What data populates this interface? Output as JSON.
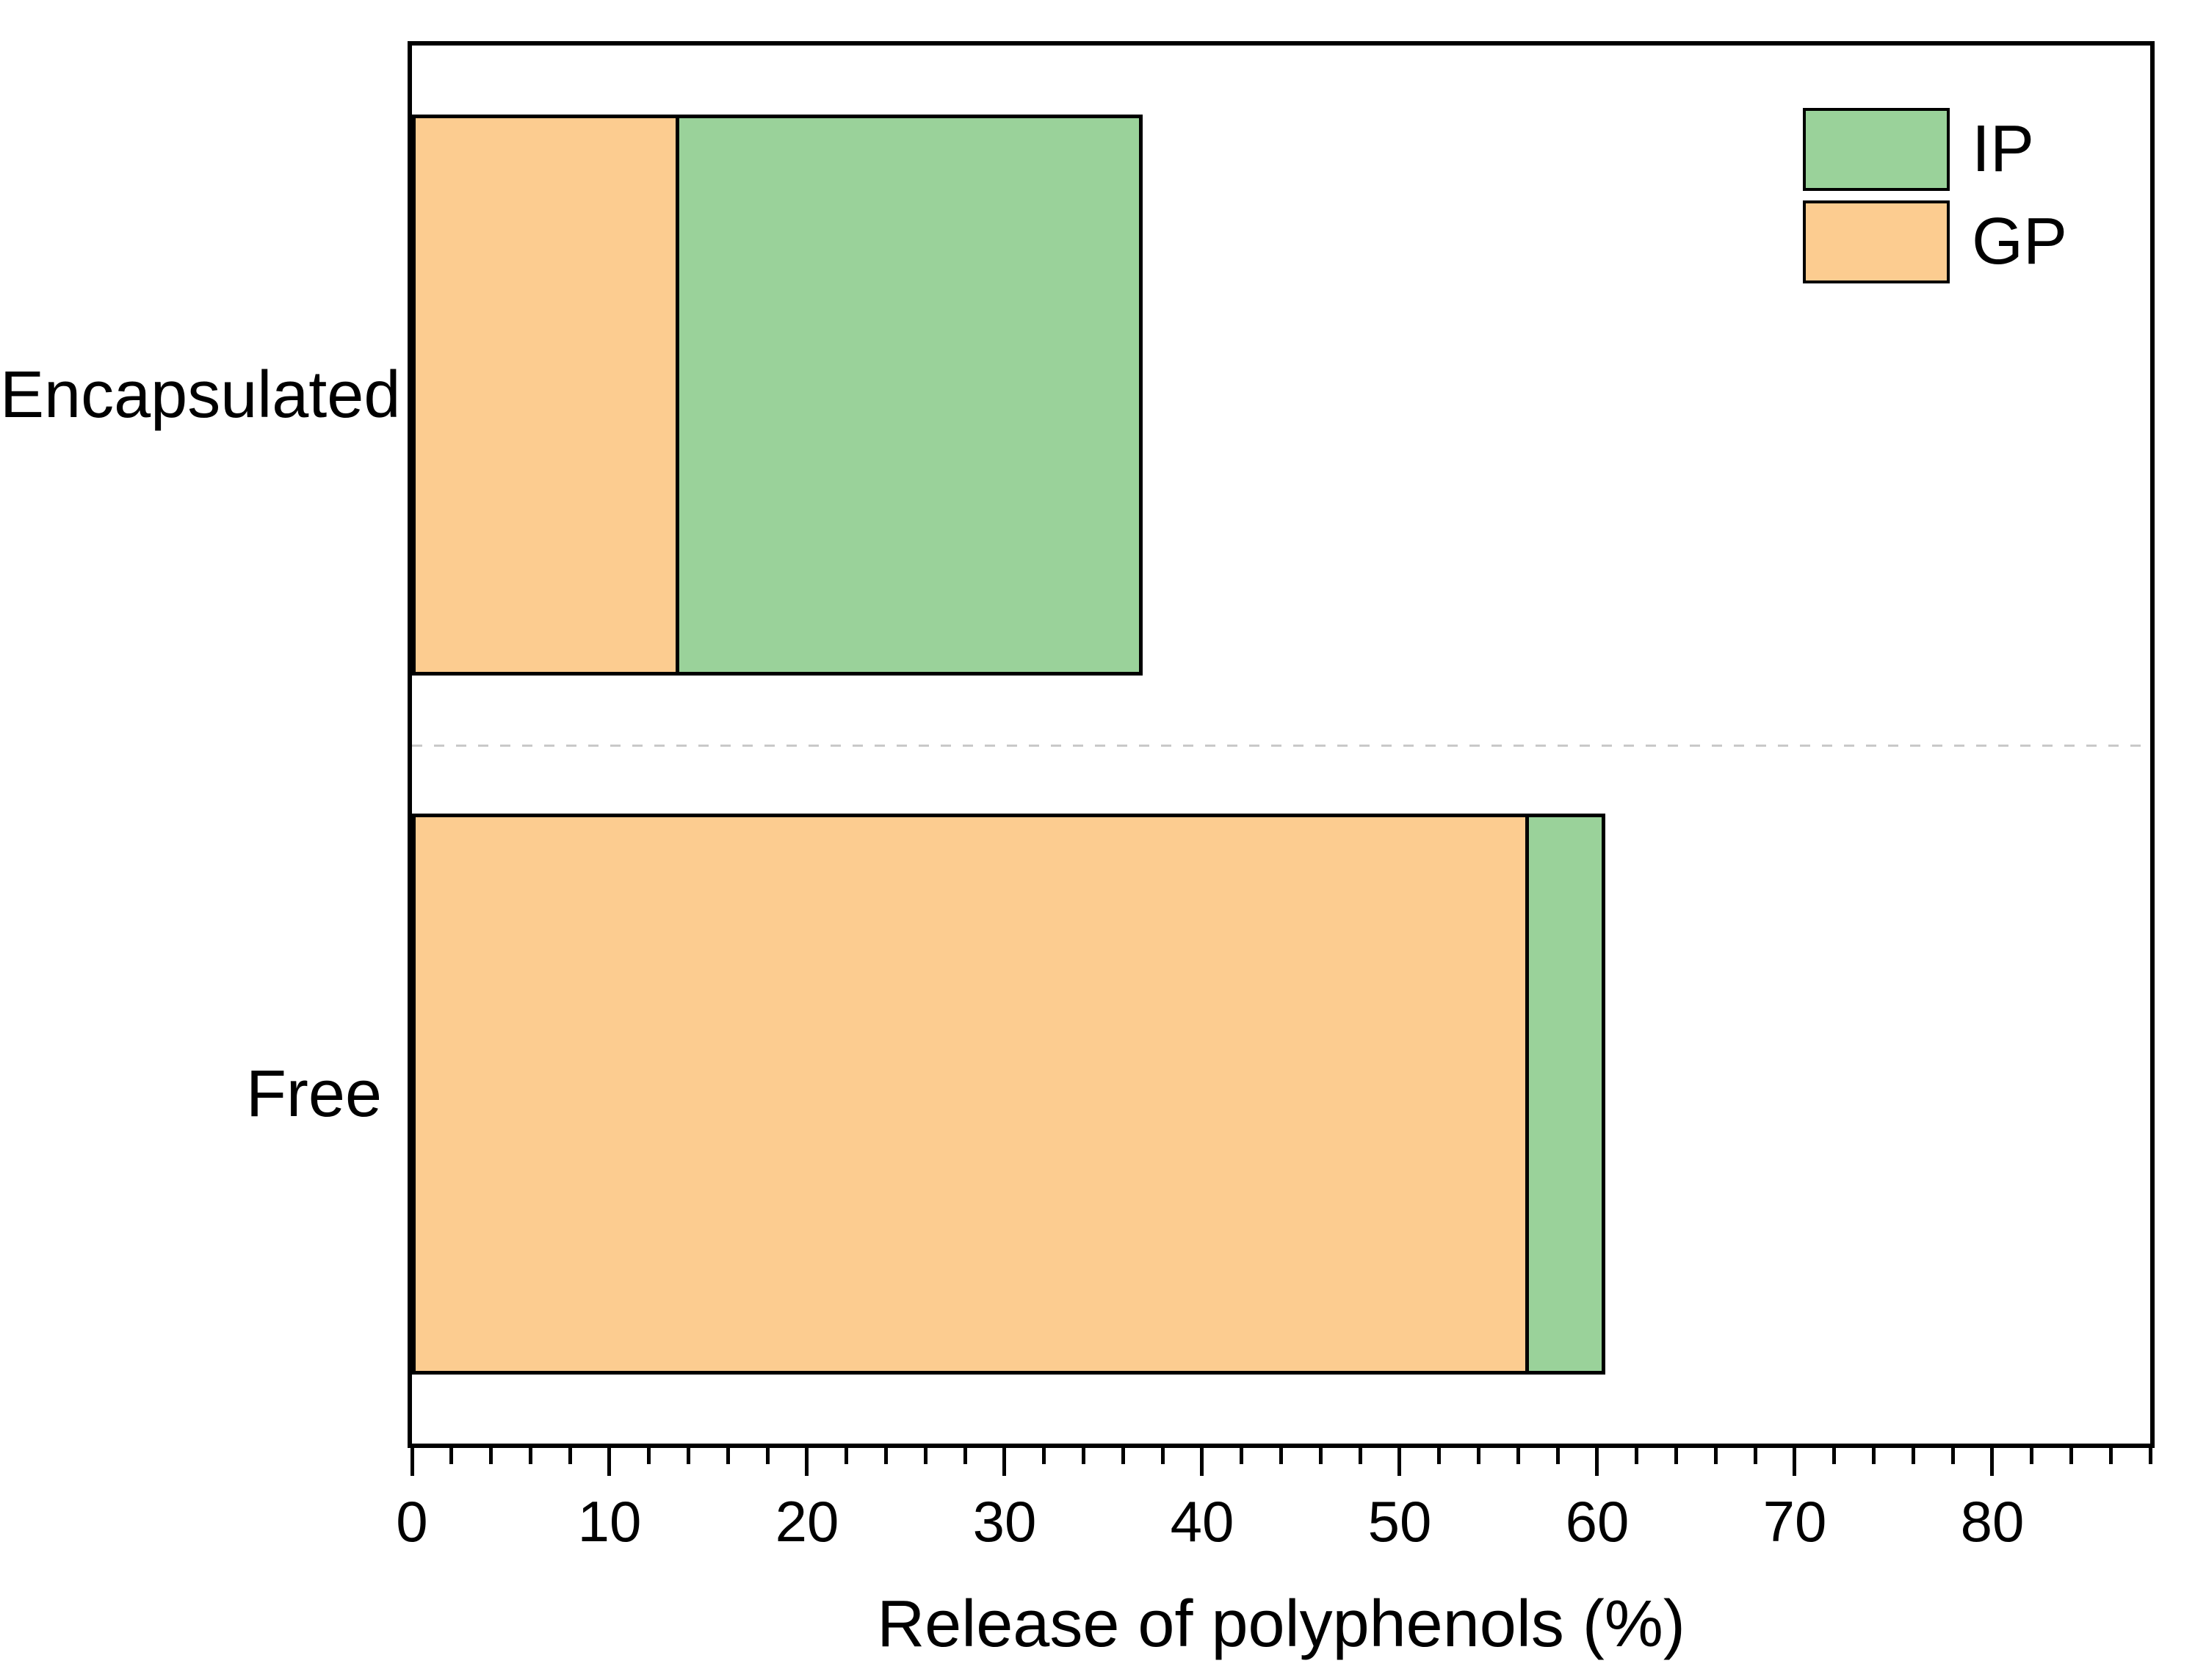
{
  "chart_data": {
    "type": "bar",
    "variant": "horizontal-stacked",
    "title": "",
    "xlabel": "Release of polyphenols (%)",
    "ylabel": "",
    "categories": [
      "Encapsulated",
      "Free"
    ],
    "stack_order": [
      "GP",
      "IP"
    ],
    "series": [
      {
        "name": "IP",
        "color": "#9AD29A",
        "values": [
          23.7,
          3.9
        ]
      },
      {
        "name": "GP",
        "color": "#FCCC90",
        "values": [
          13.3,
          56.5
        ]
      }
    ],
    "totals": [
      37.0,
      60.4
    ],
    "xlim": [
      0,
      88
    ],
    "x_major_ticks": [
      0,
      10,
      20,
      30,
      40,
      50,
      60,
      70,
      80
    ],
    "x_minor_tick_step": 2,
    "grid": "off",
    "legend": {
      "position": "top-right-inside",
      "entries": [
        "IP",
        "GP"
      ]
    },
    "separator_between_categories": {
      "style": "dashed",
      "color": "#C9C9C9"
    },
    "bar_outline_color": "#000000",
    "axis_color": "#000000"
  }
}
